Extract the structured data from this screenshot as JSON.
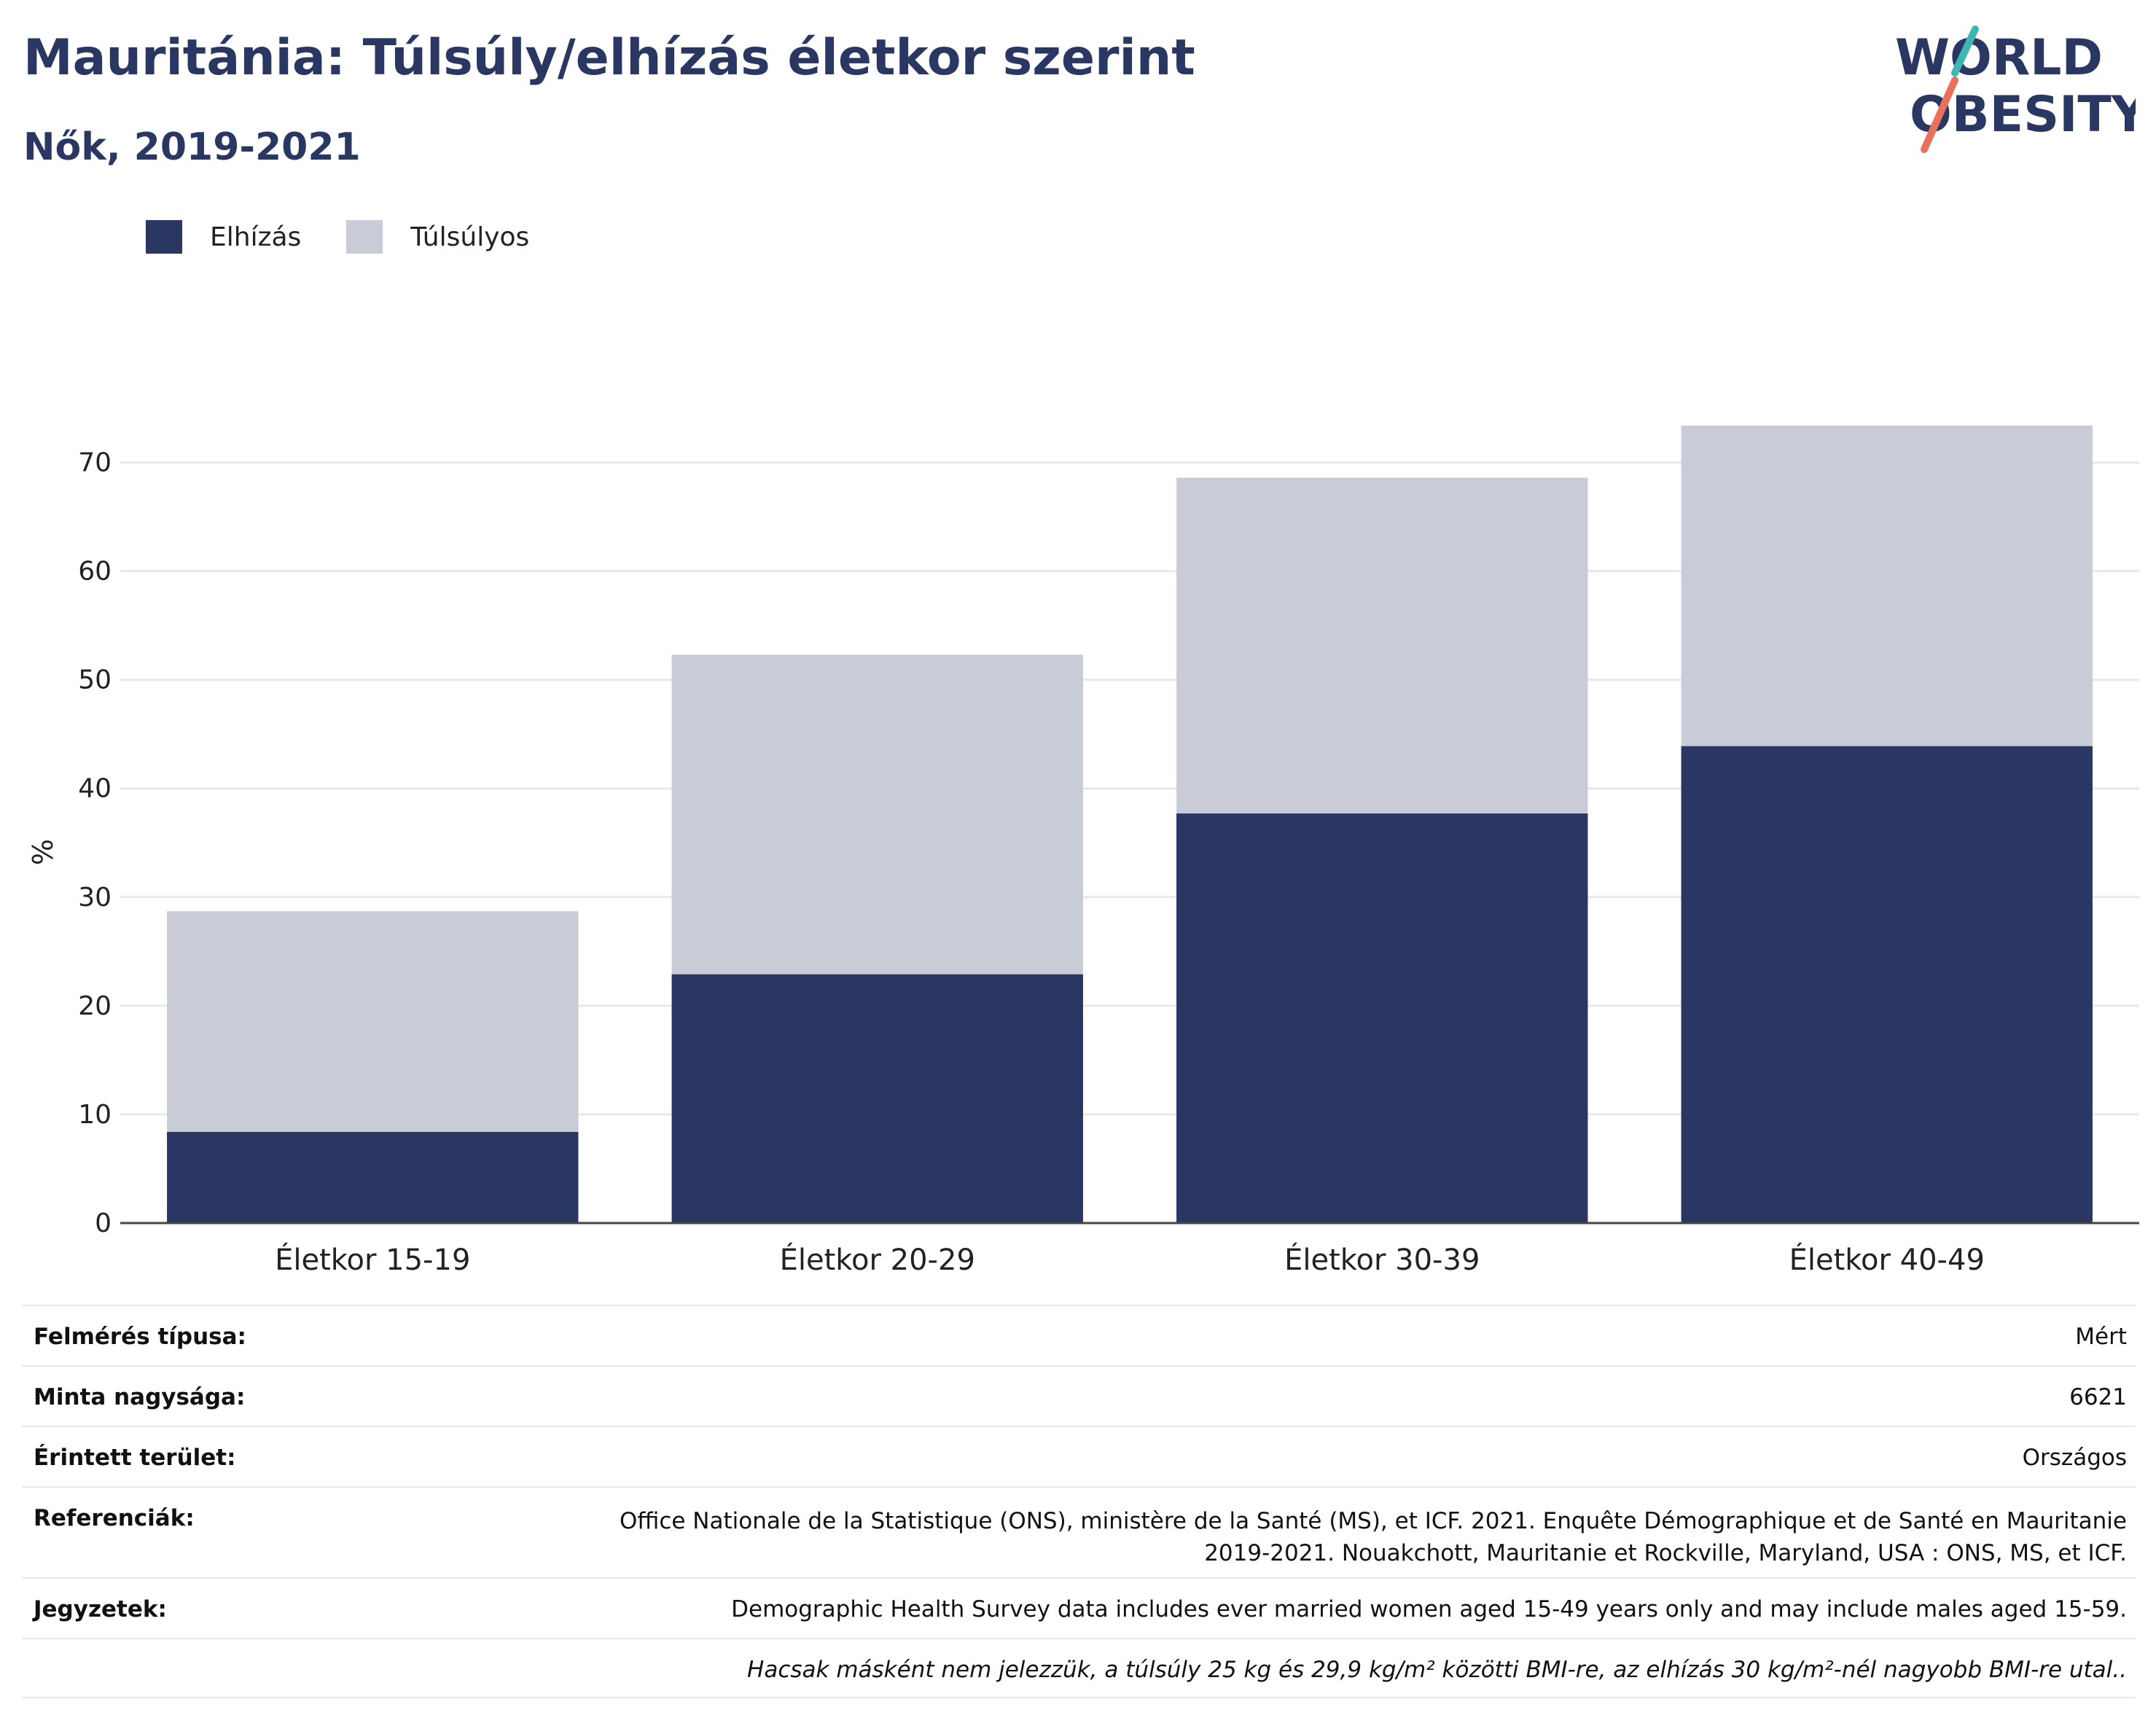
{
  "header": {
    "title": "Mauritánia: Túlsúly/elhízás életkor szerint",
    "subtitle": "Nők, 2019-2021"
  },
  "logo": {
    "line1": "WORLD",
    "line2": "OBESITY",
    "accent_teal": "#3fb6b2",
    "accent_red": "#e8705d",
    "color": "#2b3763"
  },
  "legend": [
    {
      "label": "Elhízás",
      "color": "#2b3763"
    },
    {
      "label": "Túlsúlyos",
      "color": "#c9cbd6"
    }
  ],
  "chart_data": {
    "type": "bar",
    "stacked": true,
    "categories": [
      "Életkor 15-19",
      "Életkor 20-29",
      "Életkor 30-39",
      "Életkor 40-49"
    ],
    "series": [
      {
        "name": "Elhízás",
        "values": [
          8.4,
          22.9,
          37.7,
          43.9
        ],
        "color": "#2b3763"
      },
      {
        "name": "Túlsúlyos",
        "values": [
          20.3,
          29.4,
          30.9,
          29.5
        ],
        "color": "#c9cbd6"
      }
    ],
    "ylabel": "%",
    "ylim": [
      0,
      75
    ],
    "yticks": [
      0,
      10,
      20,
      30,
      40,
      50,
      60,
      70
    ],
    "grid": true
  },
  "info": [
    {
      "key": "Felmérés típusa:",
      "value": "Mért"
    },
    {
      "key": "Minta nagysága:",
      "value": "6621"
    },
    {
      "key": "Érintett terület:",
      "value": "Országos"
    },
    {
      "key": "Referenciák:",
      "value": "Office Nationale de la Statistique (ONS), ministère de la Santé (MS), et ICF. 2021. Enquête Démographique et de Santé en Mauritanie 2019-2021. Nouakchott, Mauritanie et Rockville, Maryland, USA : ONS, MS, et ICF."
    },
    {
      "key": "Jegyzetek:",
      "value": "Demographic Health Survey data includes ever married women aged 15-49 years only and may include males aged 15-59."
    }
  ],
  "footnote": "Hacsak másként nem jelezzük, a túlsúly 25 kg és 29,9 kg/m² közötti BMI-re, az elhízás 30 kg/m²-nél nagyobb BMI-re utal.."
}
